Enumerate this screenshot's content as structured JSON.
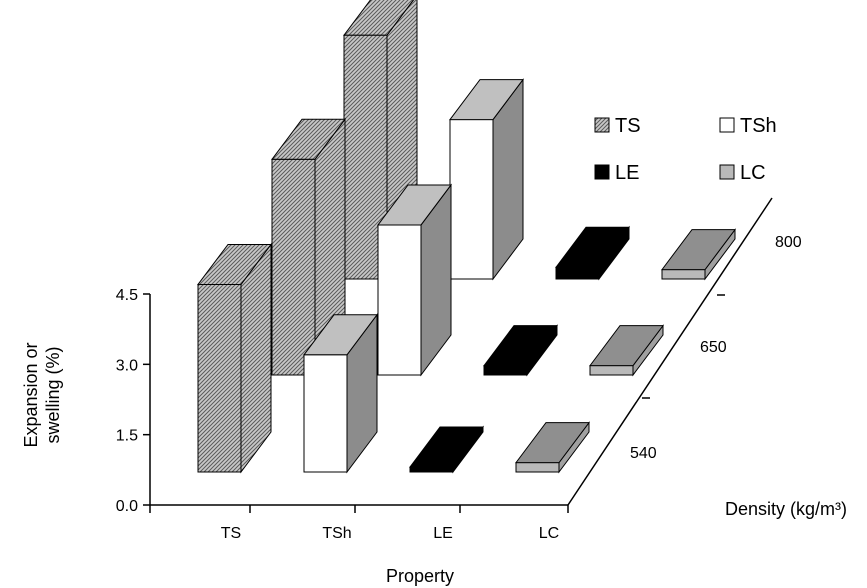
{
  "chart_data": {
    "type": "bar",
    "subtype": "3d-bar",
    "title": "",
    "xlabel": "Property",
    "ylabel": "Expansion or swelling (%)",
    "zlabel": "Density (kg/m³)",
    "categories": [
      "TS",
      "TSh",
      "LE",
      "LC"
    ],
    "depth_categories": [
      "540",
      "650",
      "800"
    ],
    "ylim": [
      0,
      4.5
    ],
    "yticks": [
      "0.0",
      "1.5",
      "3.0",
      "4.5"
    ],
    "grid": false,
    "legend_position": "top-right",
    "series": [
      {
        "name": "540",
        "values": [
          4.0,
          2.5,
          0.1,
          0.2
        ]
      },
      {
        "name": "650",
        "values": [
          4.6,
          3.2,
          0.2,
          0.2
        ]
      },
      {
        "name": "800",
        "values": [
          5.2,
          3.4,
          0.25,
          0.2
        ]
      }
    ],
    "legend": [
      {
        "label": "TS",
        "pattern": "hatched"
      },
      {
        "label": "TSh",
        "pattern": "white"
      },
      {
        "label": "LE",
        "pattern": "black"
      },
      {
        "label": "LC",
        "pattern": "light-gray"
      }
    ]
  },
  "colors": {
    "TS": "#9a9a9a",
    "TSh": "#ffffff",
    "LE": "#000000",
    "LC": "#b9b9b9",
    "side": "#8c8c8c",
    "outline": "#000000"
  }
}
